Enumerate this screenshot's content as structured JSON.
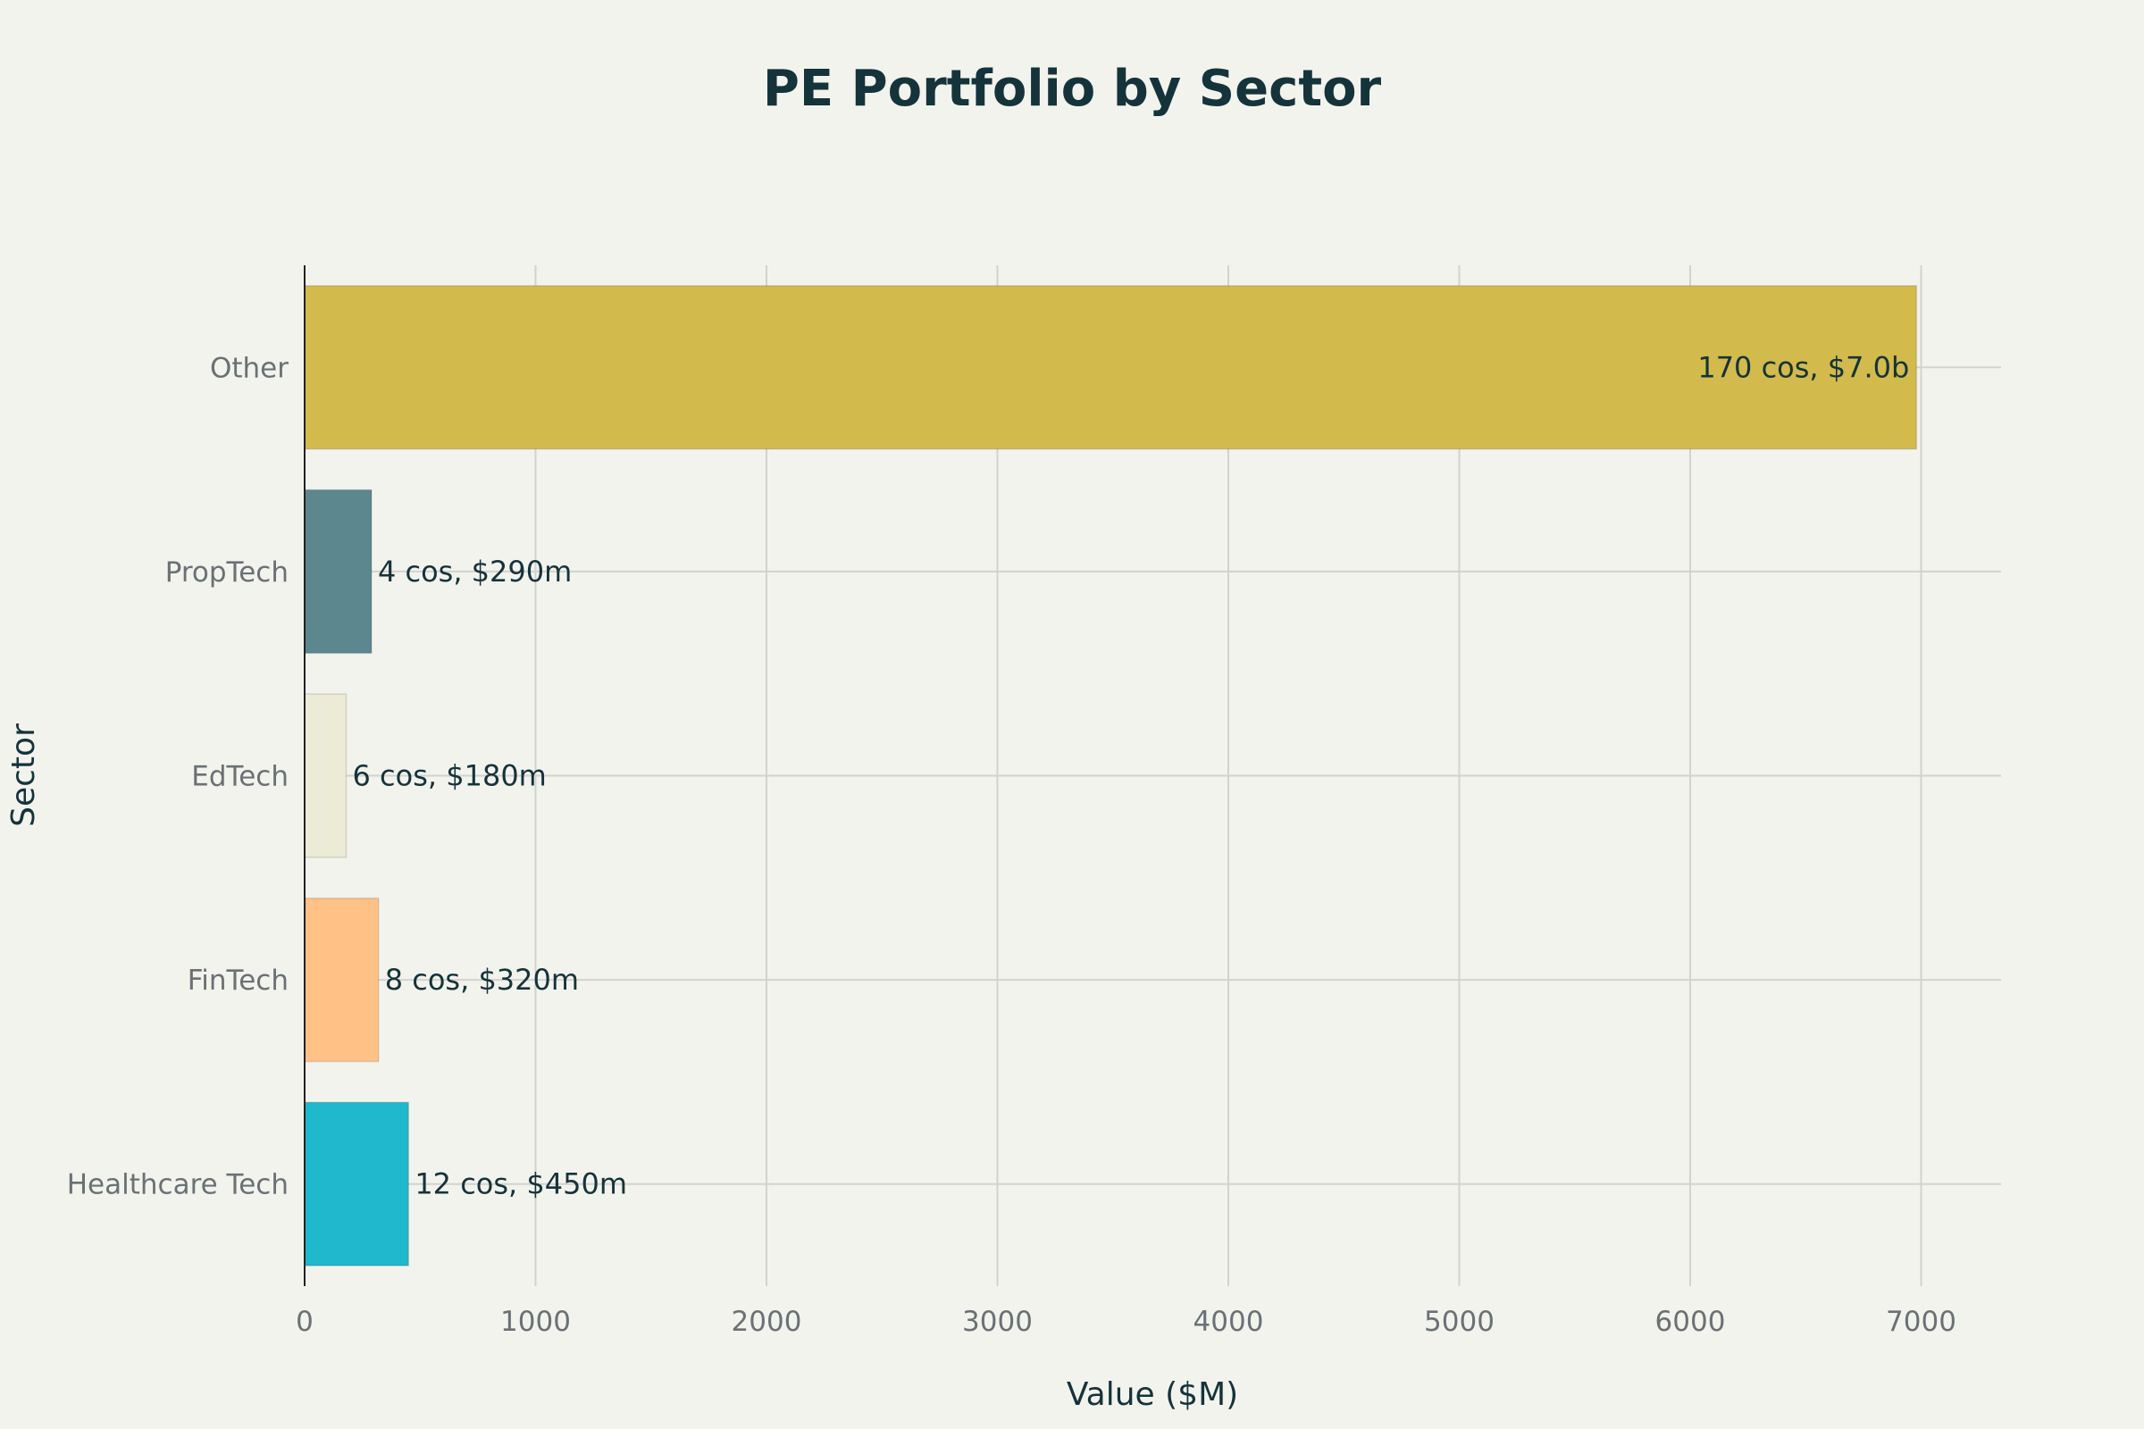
{
  "chart_data": {
    "type": "bar",
    "orientation": "horizontal",
    "title": "PE Portfolio by Sector",
    "xlabel": "Value ($M)",
    "ylabel": "Sector",
    "xlim": [
      0,
      7350
    ],
    "xticks": [
      0,
      1000,
      2000,
      3000,
      4000,
      5000,
      6000,
      7000
    ],
    "grid": true,
    "categories": [
      "Healthcare Tech",
      "FinTech",
      "EdTech",
      "PropTech",
      "Other"
    ],
    "values": [
      450,
      320,
      180,
      290,
      6980
    ],
    "data_labels": [
      "12 cos, $450m",
      "8 cos, $320m",
      "6 cos, $180m",
      "4 cos, $290m",
      "170 cos, $7.0b"
    ],
    "colors": [
      "#1FB8CD",
      "#FFC185",
      "#ECEBD5",
      "#5D878F",
      "#D2BA4C"
    ],
    "label_position": [
      "outside",
      "outside",
      "outside",
      "outside",
      "inside"
    ]
  }
}
